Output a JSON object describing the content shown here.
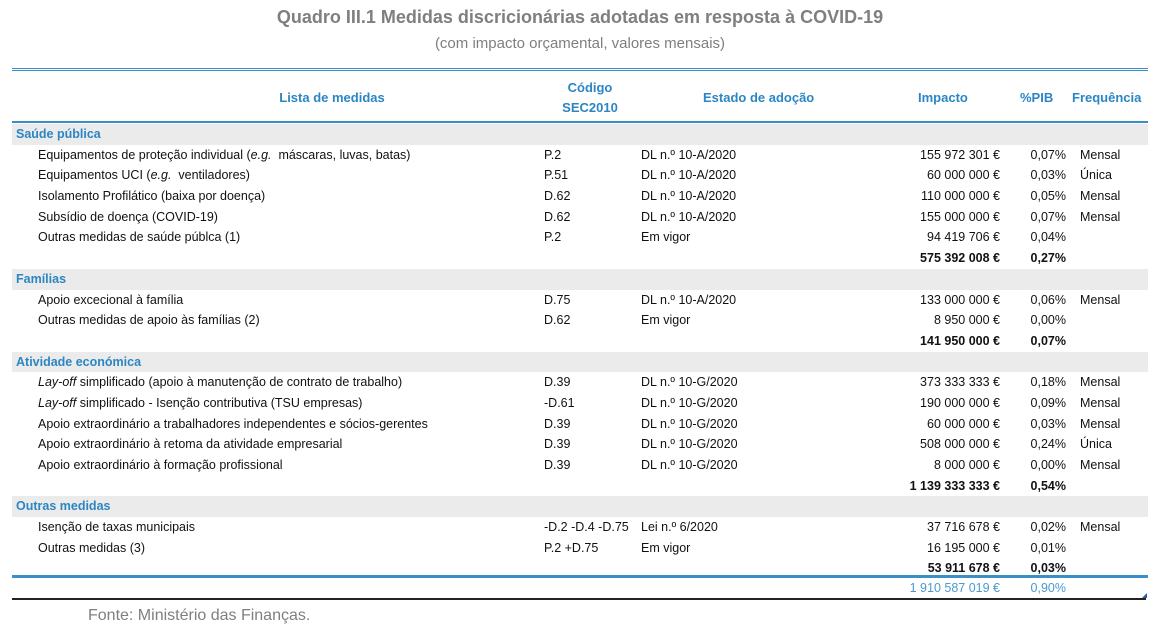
{
  "title": "Quadro III.1 Medidas discricionárias adotadas em resposta à COVID-19",
  "subtitle": "(com impacto orçamental, valores mensais)",
  "headers": {
    "lista": "Lista de medidas",
    "codigo_1": "Código",
    "codigo_2": "SEC2010",
    "estado": "Estado de adoção",
    "impacto": "Impacto",
    "pib": "%PIB",
    "frequencia": "Frequência"
  },
  "sections": [
    {
      "title": "Saúde pública",
      "rows": [
        {
          "name_pre": "Equipamentos de proteção individual (",
          "name_it": "e.g.",
          "name_post": "  máscaras, luvas, batas)",
          "code": "P.2",
          "estado": "DL n.º 10-A/2020",
          "impacto": "155 972 301 €",
          "pib": "0,07%",
          "freq": "Mensal"
        },
        {
          "name_pre": "Equipamentos UCI (",
          "name_it": "e.g.",
          "name_post": "  ventiladores)",
          "code": "P.51",
          "estado": "DL n.º 10-A/2020",
          "impacto": "60 000 000 €",
          "pib": "0,03%",
          "freq": "Única"
        },
        {
          "name_pre": "Isolamento Profilático (baixa por doença)",
          "name_it": "",
          "name_post": "",
          "code": "D.62",
          "estado": "DL n.º 10-A/2020",
          "impacto": "110 000 000 €",
          "pib": "0,05%",
          "freq": "Mensal"
        },
        {
          "name_pre": "Subsídio de doença (COVID-19)",
          "name_it": "",
          "name_post": "",
          "code": "D.62",
          "estado": "DL n.º 10-A/2020",
          "impacto": "155 000 000 €",
          "pib": "0,07%",
          "freq": "Mensal"
        },
        {
          "name_pre": "Outras medidas de saúde públca (1)",
          "name_it": "",
          "name_post": "",
          "code": "P.2",
          "estado": "Em vigor",
          "impacto": "94 419 706 €",
          "pib": "0,04%",
          "freq": ""
        }
      ],
      "total": {
        "impacto": "575 392 008 €",
        "pib": "0,27%"
      }
    },
    {
      "title": "Famílias",
      "rows": [
        {
          "name_pre": "Apoio excecional à família",
          "name_it": "",
          "name_post": "",
          "code": "D.75",
          "estado": "DL n.º 10-A/2020",
          "impacto": "133 000 000 €",
          "pib": "0,06%",
          "freq": "Mensal"
        },
        {
          "name_pre": "Outras medidas de apoio às famílias (2)",
          "name_it": "",
          "name_post": "",
          "code": "D.62",
          "estado": "Em vigor",
          "impacto": "8 950 000 €",
          "pib": "0,00%",
          "freq": ""
        }
      ],
      "total": {
        "impacto": "141 950 000 €",
        "pib": "0,07%"
      }
    },
    {
      "title": "Atividade económica",
      "rows": [
        {
          "name_pre": "",
          "name_it": "Lay-off",
          "name_post": " simplificado (apoio à manutenção de contrato de trabalho)",
          "code": "D.39",
          "estado": "DL n.º 10-G/2020",
          "impacto": "373 333 333 €",
          "pib": "0,18%",
          "freq": "Mensal"
        },
        {
          "name_pre": "",
          "name_it": "Lay-off",
          "name_post": " simplificado - Isenção contributiva (TSU empresas)",
          "code": "-D.61",
          "estado": "DL n.º 10-G/2020",
          "impacto": "190 000 000 €",
          "pib": "0,09%",
          "freq": "Mensal"
        },
        {
          "name_pre": "Apoio extraordinário a trabalhadores independentes e sócios-gerentes",
          "name_it": "",
          "name_post": "",
          "code": "D.39",
          "estado": "DL n.º 10-G/2020",
          "impacto": "60 000 000 €",
          "pib": "0,03%",
          "freq": "Mensal"
        },
        {
          "name_pre": "Apoio extraordinário à retoma da atividade empresarial",
          "name_it": "",
          "name_post": "",
          "code": "D.39",
          "estado": "DL n.º 10-G/2020",
          "impacto": "508 000 000 €",
          "pib": "0,24%",
          "freq": "Única"
        },
        {
          "name_pre": "Apoio extraordinário à formação profissional",
          "name_it": "",
          "name_post": "",
          "code": "D.39",
          "estado": "DL n.º 10-G/2020",
          "impacto": "8 000 000 €",
          "pib": "0,00%",
          "freq": "Mensal"
        }
      ],
      "total": {
        "impacto": "1 139 333 333 €",
        "pib": "0,54%"
      }
    },
    {
      "title": "Outras medidas",
      "rows": [
        {
          "name_pre": "Isenção de taxas municipais",
          "name_it": "",
          "name_post": "",
          "code": "-D.2 -D.4 -D.75",
          "estado": "Lei n.º 6/2020",
          "impacto": "37 716 678 €",
          "pib": "0,02%",
          "freq": "Mensal"
        },
        {
          "name_pre": "Outras medidas (3)",
          "name_it": "",
          "name_post": "",
          "code": "P.2 +D.75",
          "estado": "Em vigor",
          "impacto": "16 195 000 €",
          "pib": "0,01%",
          "freq": ""
        }
      ],
      "total": {
        "impacto": "53 911 678 €",
        "pib": "0,03%"
      }
    }
  ],
  "grand_total": {
    "impacto": "1 910 587 019 €",
    "pib": "0,90%"
  },
  "source": "Fonte: Ministério das Finanças.",
  "colors": {
    "accent": "#2b86c3",
    "title": "#7f7f7f"
  }
}
